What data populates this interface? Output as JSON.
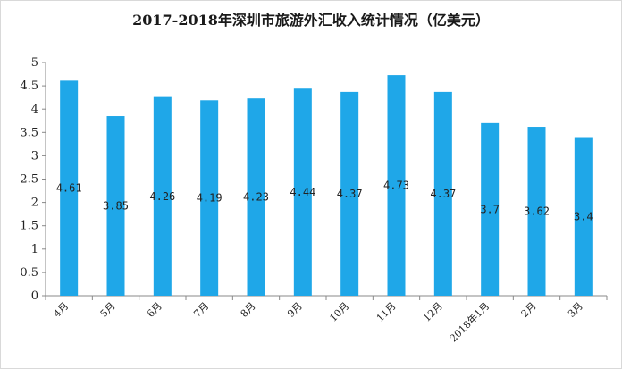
{
  "chart_data": {
    "type": "bar",
    "title": "2017-2018年深圳市旅游外汇收入统计情况（亿美元）",
    "categories": [
      "4月",
      "5月",
      "6月",
      "7月",
      "8月",
      "9月",
      "10月",
      "11月",
      "12月",
      "2018年1月",
      "2月",
      "3月"
    ],
    "values": [
      4.61,
      3.85,
      4.26,
      4.19,
      4.23,
      4.44,
      4.37,
      4.73,
      4.37,
      3.7,
      3.62,
      3.4
    ],
    "data_labels": [
      "4.61",
      "3.85",
      "4.26",
      "4.19",
      "4.23",
      "4.44",
      "4.37",
      "4.73",
      "4.37",
      "3.7",
      "3.62",
      "3.4"
    ],
    "yticks": [
      "0",
      "0.5",
      "1",
      "1.5",
      "2",
      "2.5",
      "3",
      "3.5",
      "4",
      "4.5",
      "5"
    ],
    "ylim": [
      0,
      5
    ],
    "xlabel": "",
    "ylabel": "",
    "grid": false,
    "legend": "none",
    "bar_color": "#1fa7e8"
  }
}
